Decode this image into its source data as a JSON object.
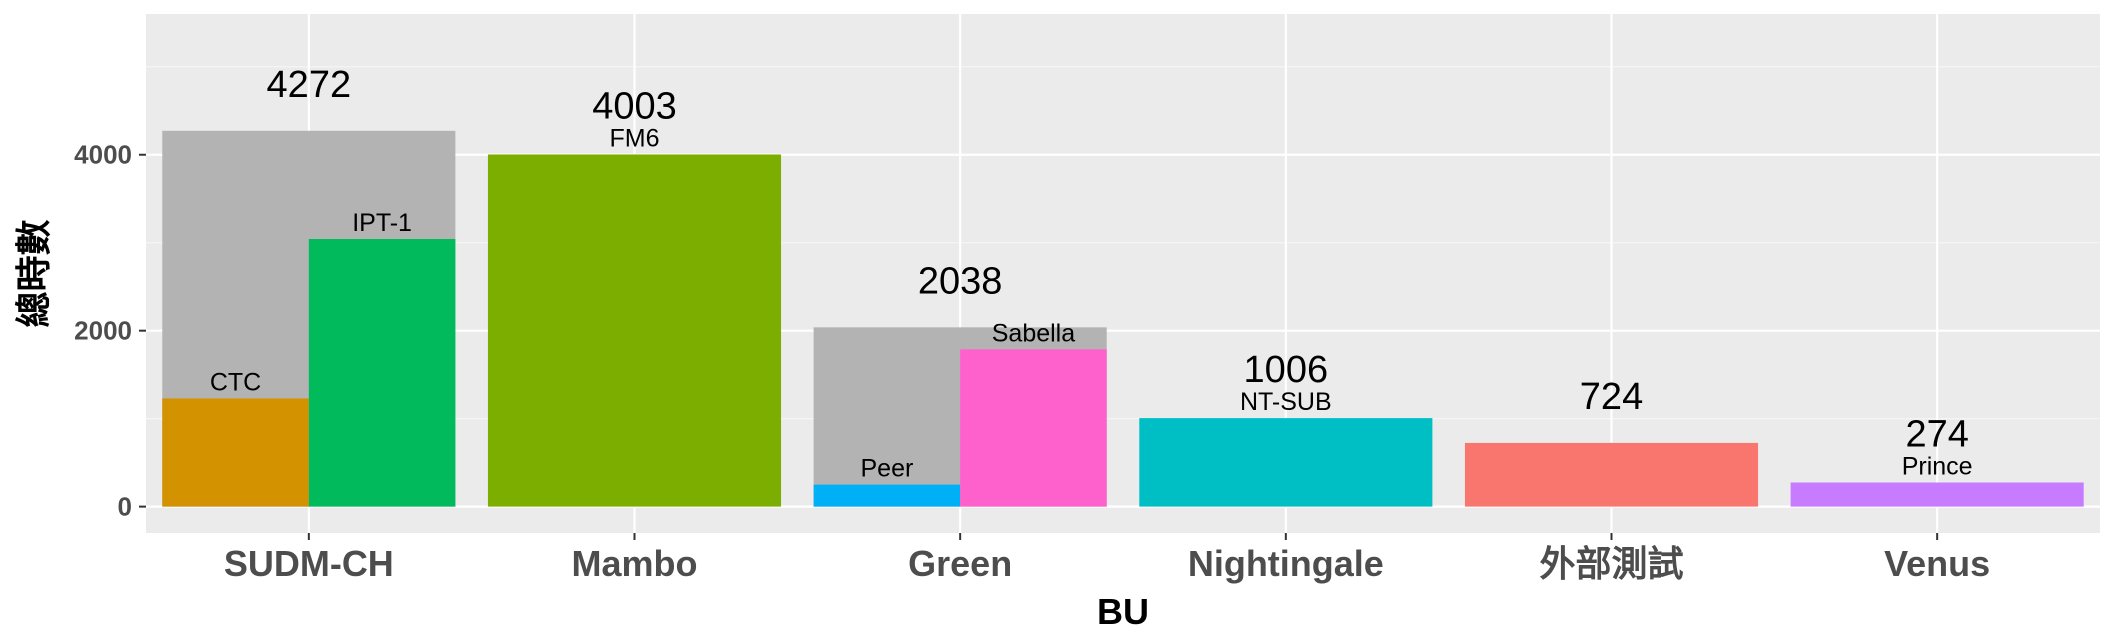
{
  "chart_data": {
    "type": "bar",
    "xlabel": "BU",
    "ylabel": "總時數",
    "ylim": [
      -300,
      5600
    ],
    "yticks": [
      0,
      2000,
      4000
    ],
    "grid": true,
    "legend": "none",
    "categories": [
      "SUDM-CH",
      "Mambo",
      "Green",
      "Nightingale",
      "外部測試",
      "Venus"
    ],
    "totals": [
      4272,
      4003,
      2038,
      1006,
      724,
      274
    ],
    "groups": [
      {
        "category": "SUDM-CH",
        "total": 4272,
        "total_color": "#b3b3b3",
        "bars": [
          {
            "name": "CTC",
            "value": 1230,
            "color": "#d39200"
          },
          {
            "name": "IPT-1",
            "value": 3042,
            "color": "#00ba5c"
          }
        ]
      },
      {
        "category": "Mambo",
        "total": 4003,
        "total_color": "#b3b3b3",
        "bars": [
          {
            "name": "FM6",
            "value": 4003,
            "color": "#7cae00"
          }
        ]
      },
      {
        "category": "Green",
        "total": 2038,
        "total_color": "#b3b3b3",
        "bars": [
          {
            "name": "Peer",
            "value": 250,
            "color": "#00b0f6"
          },
          {
            "name": "Sabella",
            "value": 1788,
            "color": "#ff61cc"
          }
        ]
      },
      {
        "category": "Nightingale",
        "total": 1006,
        "total_color": "#b3b3b3",
        "bars": [
          {
            "name": "NT-SUB",
            "value": 1006,
            "color": "#00bfc4"
          }
        ]
      },
      {
        "category": "外部測試",
        "total": 724,
        "total_color": "#b3b3b3",
        "bars": [
          {
            "name": "",
            "value": 724,
            "color": "#f8766d"
          }
        ]
      },
      {
        "category": "Venus",
        "total": 274,
        "total_color": "#b3b3b3",
        "bars": [
          {
            "name": "Prince",
            "value": 274,
            "color": "#c77cff"
          }
        ]
      }
    ],
    "colors": {
      "panel": "#ebebeb",
      "grid_major": "#ffffff",
      "grid_minor": "#f5f5f5",
      "total_bar": "#b3b3b3"
    }
  }
}
